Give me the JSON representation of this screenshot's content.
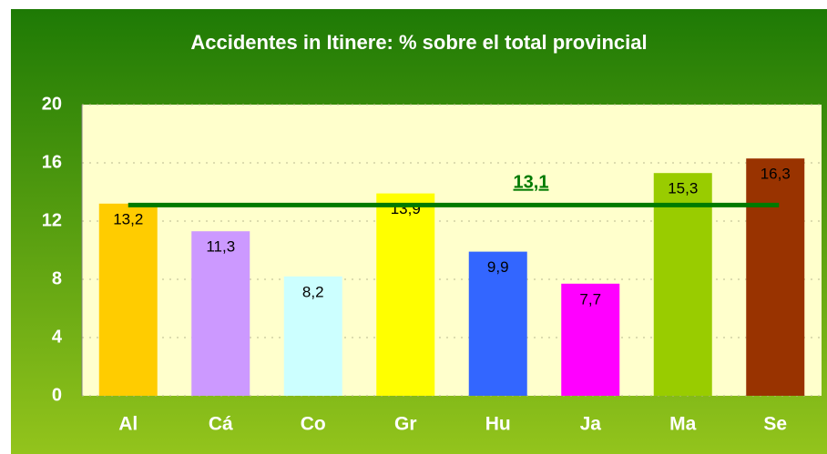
{
  "chart_data": {
    "type": "bar",
    "title": "Accidentes in Itinere: % sobre el total provincial",
    "categories": [
      "Al",
      "Cá",
      "Co",
      "Gr",
      "Hu",
      "Ja",
      "Ma",
      "Se"
    ],
    "values": [
      13.2,
      11.3,
      8.2,
      13.9,
      9.9,
      7.7,
      15.3,
      16.3
    ],
    "value_labels": [
      "13,2",
      "11,3",
      "8,2",
      "13,9",
      "9,9",
      "7,7",
      "15,3",
      "16,3"
    ],
    "colors": [
      "#ffcc00",
      "#cc99ff",
      "#ccffff",
      "#ffff00",
      "#3366ff",
      "#ff00ff",
      "#99cc00",
      "#993300"
    ],
    "ylim": [
      0,
      20
    ],
    "yticks": [
      0,
      4,
      8,
      12,
      16,
      20
    ],
    "grid": true,
    "reference_line": {
      "value": 13.1,
      "label": "13,1",
      "color": "#007a00"
    }
  }
}
